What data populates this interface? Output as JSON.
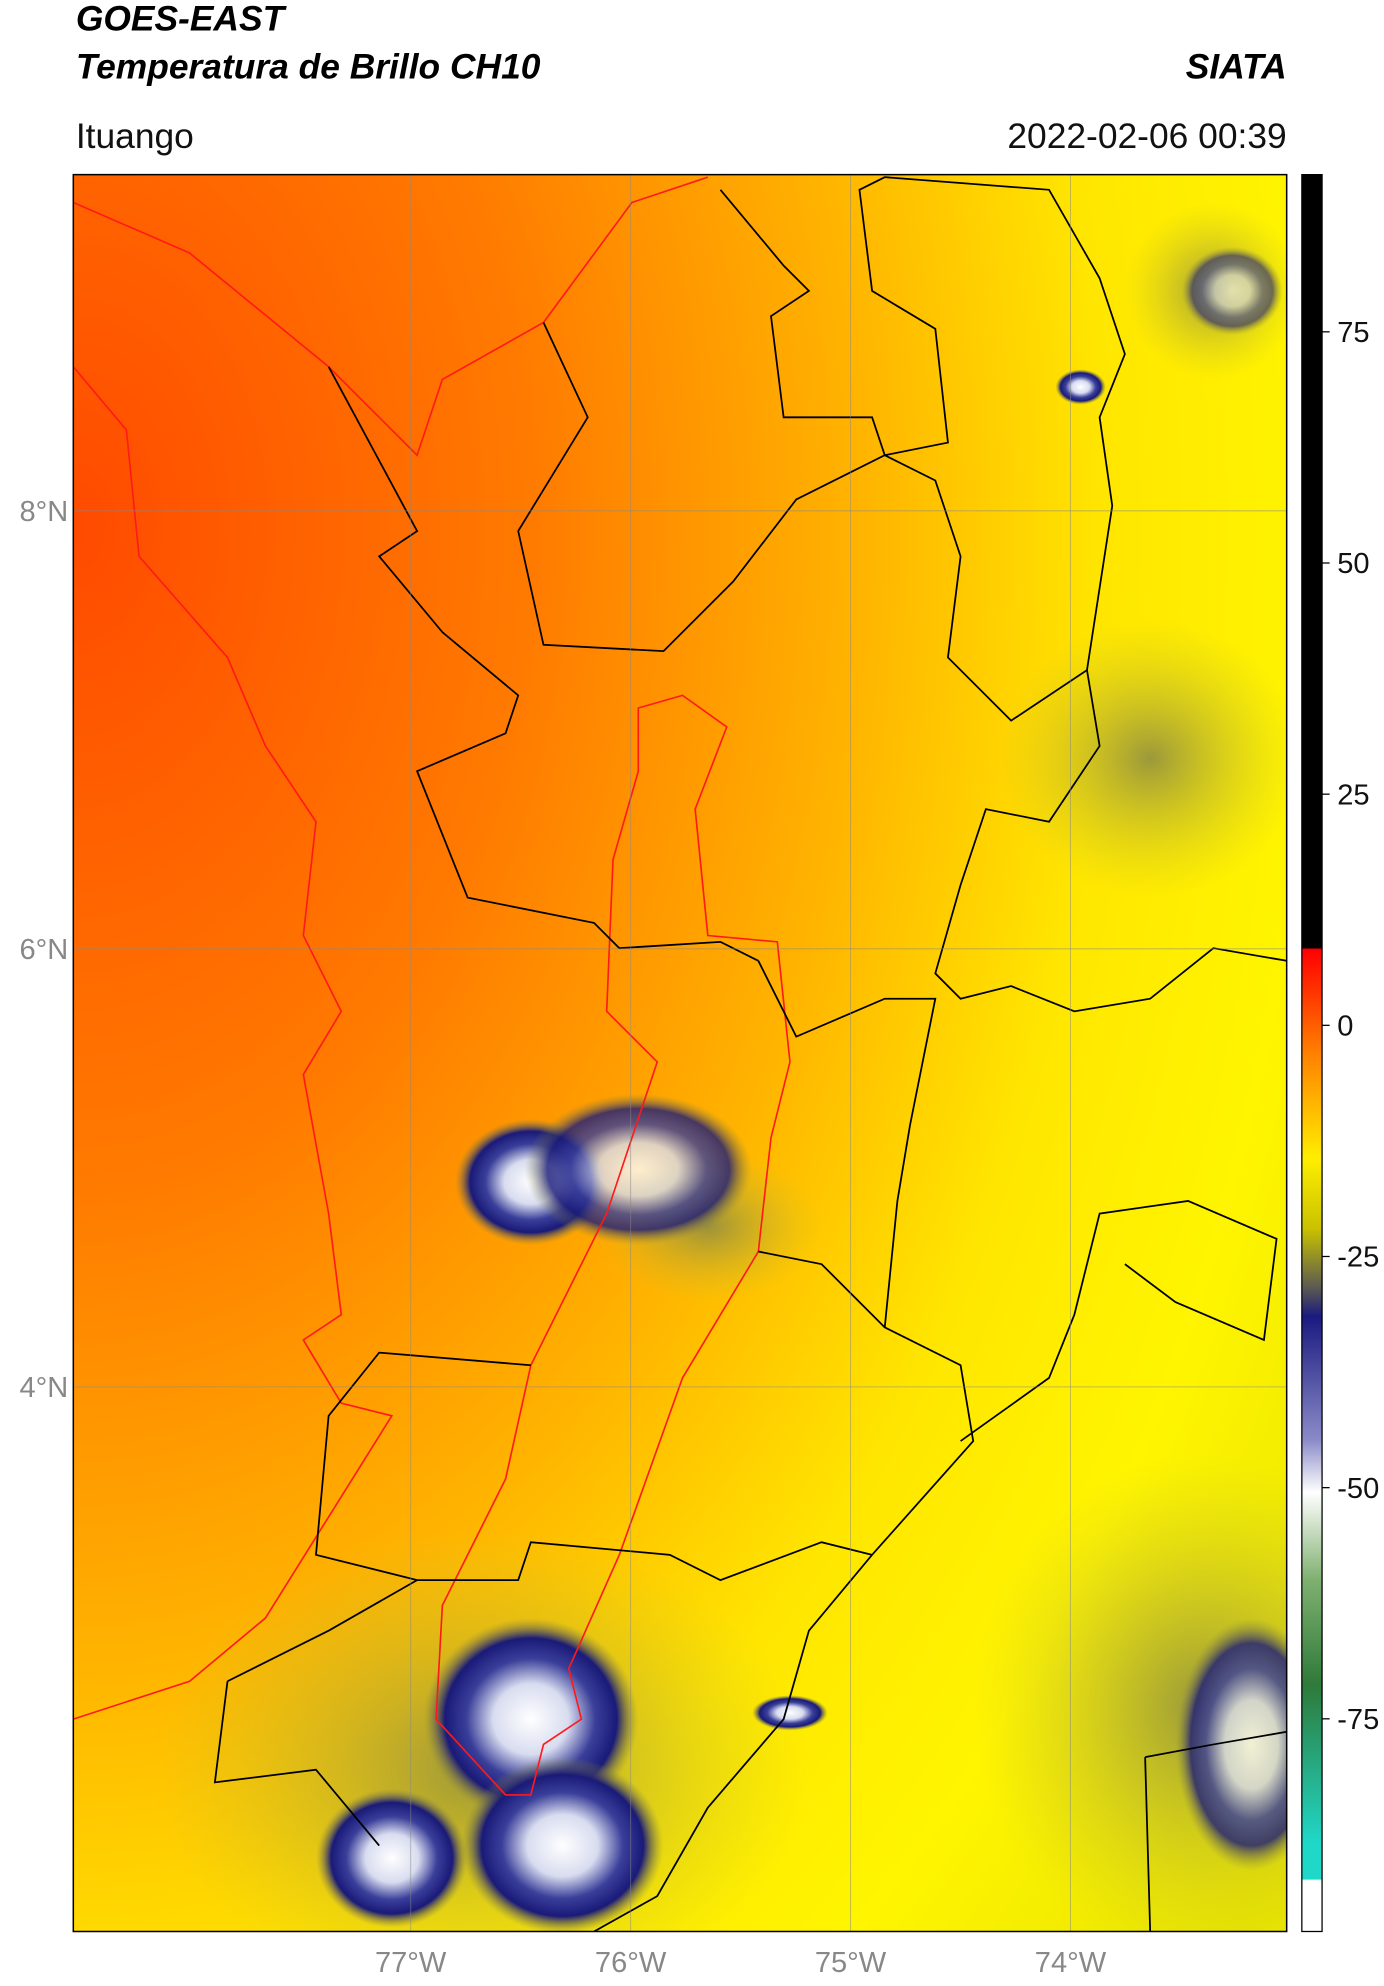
{
  "header": {
    "title": "GOES-EAST",
    "subtitle": "Temperatura de Brillo CH10",
    "agency": "SIATA",
    "region": "Ituango",
    "datetime": "2022-02-06 00:39"
  },
  "map": {
    "xlim": [
      -78.534,
      -73.017
    ],
    "ylim": [
      1.513,
      9.535
    ],
    "xticks": [
      {
        "value": -77,
        "label": "77°W"
      },
      {
        "value": -76,
        "label": "76°W"
      },
      {
        "value": -75,
        "label": "75°W"
      },
      {
        "value": -74,
        "label": "74°W"
      }
    ],
    "yticks": [
      {
        "value": 8,
        "label": "8°N"
      },
      {
        "value": 6,
        "label": "6°N"
      },
      {
        "value": 4,
        "label": "4°N"
      }
    ],
    "grid": true
  },
  "colorbar": {
    "lim": [
      -98,
      92
    ],
    "ticks": [
      75,
      50,
      25,
      0,
      -25,
      -50,
      -75
    ]
  }
}
